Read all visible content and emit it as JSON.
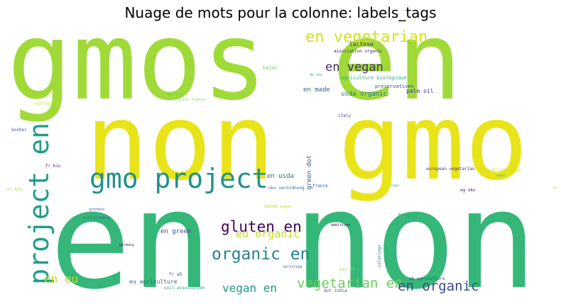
{
  "title": "Nuage de mots pour la colonne: labels_tags",
  "words": [
    {
      "text": "gmos en",
      "color": "#a0da39"
    },
    {
      "text": "non gmo",
      "color": "#e8e419"
    },
    {
      "text": "en non",
      "color": "#35b779"
    },
    {
      "text": "gmo project",
      "color": "#21918c"
    },
    {
      "text": "project en",
      "color": "#1f9e89"
    },
    {
      "text": "en vegetarian",
      "color": "#d2e21b"
    },
    {
      "text": "en vegan",
      "color": "#482878"
    },
    {
      "text": "gluten en",
      "color": "#440154"
    },
    {
      "text": "eu organic",
      "color": "#bddf26"
    },
    {
      "text": "organic en",
      "color": "#26828e"
    },
    {
      "text": "vegetarian en",
      "color": "#6ccd5a"
    },
    {
      "text": "en organic",
      "color": "#3e4a89"
    },
    {
      "text": "vegan en",
      "color": "#1f988b"
    },
    {
      "text": "en eu",
      "color": "#c2df23"
    },
    {
      "text": "en green",
      "color": "#3e4989"
    },
    {
      "text": "en usda",
      "color": "#31688e"
    },
    {
      "text": "green dot",
      "color": "#3b528b"
    },
    {
      "text": "usda organic",
      "color": "#2a788e"
    },
    {
      "text": "en made",
      "color": "#355f8d"
    },
    {
      "text": "agriculture biologique",
      "color": "#29af7f"
    },
    {
      "text": "preservatives",
      "color": "#3b528b"
    },
    {
      "text": "palm oil",
      "color": "#46327e"
    },
    {
      "text": "lactose",
      "color": "#472d7b"
    },
    {
      "text": "association organic",
      "color": "#482475"
    },
    {
      "text": "halal",
      "color": "#5ec962"
    },
    {
      "text": "de oko",
      "color": "#2fb47c"
    },
    {
      "text": "gb org",
      "color": "#73d055"
    },
    {
      "text": "artificial flavors",
      "color": "#7ad151"
    },
    {
      "text": "nutriscore",
      "color": "#b5de2b"
    },
    {
      "text": "kosher",
      "color": "#3b528b"
    },
    {
      "text": "italy",
      "color": "#443983"
    },
    {
      "text": "fr bio",
      "color": "#482677"
    },
    {
      "text": "nl bio",
      "color": "#a5db36"
    },
    {
      "text": "european vegetarian",
      "color": "#46337e"
    },
    {
      "text": "vegetarian union",
      "color": "#c8e020"
    },
    {
      "text": "oko verordnung",
      "color": "#2d708e"
    },
    {
      "text": "france",
      "color": "#31688e"
    },
    {
      "text": "eg oko",
      "color": "#482173"
    },
    {
      "text": "vegan",
      "color": "#56c667"
    },
    {
      "text": "protein",
      "color": "#3f4788"
    },
    {
      "text": "sustainable",
      "color": "#2c728e"
    },
    {
      "text": "added sugar",
      "color": "#b8de29"
    },
    {
      "text": "additives",
      "color": "#440154"
    },
    {
      "text": "de eg",
      "color": "#27ad81"
    },
    {
      "text": "germany",
      "color": "#482475"
    },
    {
      "text": "colorings",
      "color": "#2c728e"
    },
    {
      "text": "certified",
      "color": "#3b528b"
    },
    {
      "text": "bio fr",
      "color": "#9fda3a"
    },
    {
      "text": "fr ab",
      "color": "#3d4e8a"
    },
    {
      "text": "eu agriculture",
      "color": "#306a8e"
    },
    {
      "text": "soil association",
      "color": "#21a685"
    },
    {
      "text": "ab agriculture",
      "color": "#3a548c"
    },
    {
      "text": "dot india",
      "color": "#3b528b"
    },
    {
      "text": "vegan",
      "color": "#1f9e89"
    },
    {
      "text": "sugar",
      "color": "#95d840"
    },
    {
      "text": "cpc",
      "color": "#fde725"
    }
  ]
}
